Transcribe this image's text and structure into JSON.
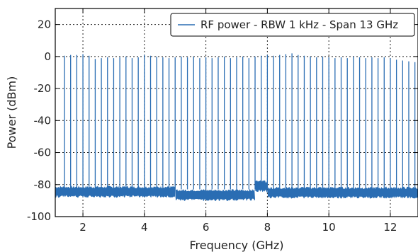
{
  "chart_data": {
    "type": "line",
    "xlabel": "Frequency (GHz)",
    "ylabel": "Power (dBm)",
    "xlim": [
      1.1,
      12.9
    ],
    "ylim": [
      -100,
      30
    ],
    "xticks": [
      2,
      4,
      6,
      8,
      10,
      12
    ],
    "yticks": [
      20,
      0,
      -20,
      -40,
      -60,
      -80,
      -100
    ],
    "grid": true,
    "legend_position": "top-right",
    "series": [
      {
        "name": "RF power - RBW 1 kHz - Span 13 GHz",
        "color": "#2a6db3",
        "line_spacing_ghz": 0.2,
        "first_line_ghz": 1.4,
        "noise_floor_segments": [
          {
            "x": [
              1.1,
              5.0
            ],
            "y": -84.5
          },
          {
            "x": [
              5.0,
              7.6
            ],
            "y": -86.5
          },
          {
            "x": [
              7.6,
              8.0
            ],
            "y": -81.0
          },
          {
            "x": [
              8.0,
              12.9
            ],
            "y": -85.0
          }
        ],
        "peaks": [
          {
            "x": 1.4,
            "y": 0.5
          },
          {
            "x": 1.6,
            "y": 1.0
          },
          {
            "x": 1.8,
            "y": 1.0
          },
          {
            "x": 2.0,
            "y": 1.5
          },
          {
            "x": 2.2,
            "y": 0.5
          },
          {
            "x": 2.4,
            "y": -1.5
          },
          {
            "x": 2.6,
            "y": -1.0
          },
          {
            "x": 2.8,
            "y": -0.5
          },
          {
            "x": 3.0,
            "y": -1.0
          },
          {
            "x": 3.2,
            "y": -0.5
          },
          {
            "x": 3.4,
            "y": 0.0
          },
          {
            "x": 3.6,
            "y": -1.0
          },
          {
            "x": 3.8,
            "y": -0.5
          },
          {
            "x": 4.0,
            "y": 1.0
          },
          {
            "x": 4.2,
            "y": 0.5
          },
          {
            "x": 4.4,
            "y": 0.0
          },
          {
            "x": 4.6,
            "y": -0.5
          },
          {
            "x": 4.8,
            "y": -1.0
          },
          {
            "x": 5.0,
            "y": -0.5
          },
          {
            "x": 5.2,
            "y": 0.0
          },
          {
            "x": 5.4,
            "y": -0.5
          },
          {
            "x": 5.6,
            "y": 0.0
          },
          {
            "x": 5.8,
            "y": -1.0
          },
          {
            "x": 6.0,
            "y": -0.5
          },
          {
            "x": 6.2,
            "y": -1.0
          },
          {
            "x": 6.4,
            "y": -0.5
          },
          {
            "x": 6.6,
            "y": 0.0
          },
          {
            "x": 6.8,
            "y": -1.0
          },
          {
            "x": 7.0,
            "y": -0.5
          },
          {
            "x": 7.2,
            "y": 0.0
          },
          {
            "x": 7.4,
            "y": -1.0
          },
          {
            "x": 7.6,
            "y": 0.0
          },
          {
            "x": 7.8,
            "y": 0.5
          },
          {
            "x": 8.0,
            "y": 1.0
          },
          {
            "x": 8.2,
            "y": 0.5
          },
          {
            "x": 8.4,
            "y": 1.0
          },
          {
            "x": 8.6,
            "y": 1.5
          },
          {
            "x": 8.8,
            "y": 2.0
          },
          {
            "x": 9.0,
            "y": 1.0
          },
          {
            "x": 9.2,
            "y": 0.5
          },
          {
            "x": 9.4,
            "y": 0.0
          },
          {
            "x": 9.6,
            "y": -0.5
          },
          {
            "x": 9.8,
            "y": 0.0
          },
          {
            "x": 10.0,
            "y": -0.5
          },
          {
            "x": 10.2,
            "y": -1.0
          },
          {
            "x": 10.4,
            "y": -0.5
          },
          {
            "x": 10.6,
            "y": -1.0
          },
          {
            "x": 10.8,
            "y": 0.0
          },
          {
            "x": 11.0,
            "y": -0.5
          },
          {
            "x": 11.2,
            "y": -1.0
          },
          {
            "x": 11.4,
            "y": -0.5
          },
          {
            "x": 11.6,
            "y": -1.0
          },
          {
            "x": 11.8,
            "y": -0.5
          },
          {
            "x": 12.0,
            "y": -1.0
          },
          {
            "x": 12.2,
            "y": -2.0
          },
          {
            "x": 12.4,
            "y": -2.5
          },
          {
            "x": 12.6,
            "y": -3.0
          },
          {
            "x": 12.8,
            "y": -3.5
          }
        ]
      }
    ]
  }
}
